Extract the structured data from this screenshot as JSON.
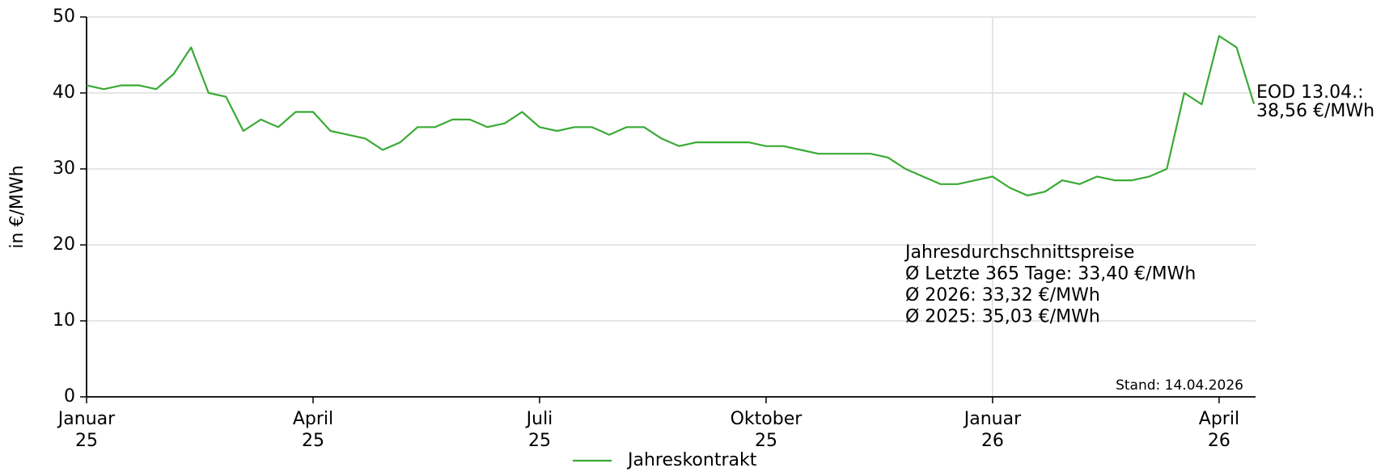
{
  "chart_data": {
    "type": "line",
    "y_label": "in €/MWh",
    "categories": [
      "Januar 25",
      null,
      null,
      null,
      null,
      null,
      null,
      null,
      null,
      null,
      null,
      null,
      null,
      "April 25",
      null,
      null,
      null,
      null,
      null,
      null,
      null,
      null,
      null,
      null,
      null,
      null,
      "Juli 25",
      null,
      null,
      null,
      null,
      null,
      null,
      null,
      null,
      null,
      null,
      null,
      null,
      "Oktober 25",
      null,
      null,
      null,
      null,
      null,
      null,
      null,
      null,
      null,
      null,
      null,
      null,
      "Januar 26",
      null,
      null,
      null,
      null,
      null,
      null,
      null,
      null,
      null,
      null,
      null,
      null,
      "April 26",
      null,
      null
    ],
    "series": [
      {
        "name": "Jahreskontrakt",
        "color": "#3aaa35",
        "values": [
          41,
          40.5,
          41,
          41,
          40.5,
          42.5,
          46,
          40,
          39.5,
          35,
          36.5,
          35.5,
          37.5,
          37.5,
          35,
          34.5,
          34,
          32.5,
          33.5,
          35.5,
          35.5,
          36.5,
          36.5,
          35.5,
          36,
          37.5,
          35.5,
          35,
          35.5,
          35.5,
          34.5,
          35.5,
          35.5,
          34,
          33,
          33.5,
          33.5,
          33.5,
          33.5,
          33,
          33,
          32.5,
          32,
          32,
          32,
          32,
          31.5,
          30,
          29,
          28,
          28,
          28.5,
          29,
          27.5,
          26.5,
          27,
          28.5,
          28,
          29,
          28.5,
          28.5,
          29,
          30,
          40,
          38.5,
          47.5,
          46,
          38.56
        ]
      }
    ],
    "ylim": [
      0,
      50
    ],
    "yticks": [
      0,
      10,
      20,
      30,
      40,
      50
    ],
    "grid": true,
    "eod_label": "EOD 13.04.:",
    "eod_value_label": "38,56 €/MWh",
    "stats": [
      "Jahresdurchschnittspreise",
      "Ø Letzte 365 Tage: 33,40 €/MWh",
      "Ø 2026: 33,32 €/MWh",
      "Ø 2025: 35,03 €/MWh"
    ],
    "stand": "Stand: 14.04.2026",
    "legend": "bottom"
  }
}
